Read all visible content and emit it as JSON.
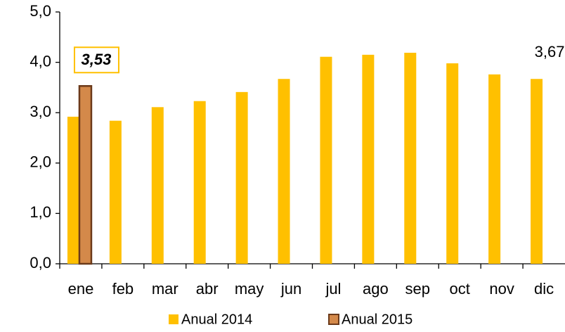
{
  "chart_data": {
    "type": "bar",
    "categories": [
      "ene",
      "feb",
      "mar",
      "abr",
      "may",
      "jun",
      "jul",
      "ago",
      "sep",
      "oct",
      "nov",
      "dic"
    ],
    "series": [
      {
        "name": "Anual 2014",
        "color": "#FFC000",
        "values": [
          2.92,
          2.84,
          3.11,
          3.23,
          3.41,
          3.67,
          4.11,
          4.15,
          4.19,
          3.98,
          3.76,
          3.67
        ],
        "value_labels": [
          null,
          null,
          null,
          null,
          null,
          null,
          null,
          null,
          null,
          null,
          null,
          "3,67"
        ]
      },
      {
        "name": "Anual 2015",
        "color": "#D4894A",
        "values": [
          3.53,
          null,
          null,
          null,
          null,
          null,
          null,
          null,
          null,
          null,
          null,
          null
        ],
        "value_labels": [
          "3,53",
          null,
          null,
          null,
          null,
          null,
          null,
          null,
          null,
          null,
          null,
          null
        ]
      }
    ],
    "ylim": [
      0,
      5
    ],
    "yticks": [
      {
        "value": 0,
        "label": "0,0"
      },
      {
        "value": 1,
        "label": "1,0"
      },
      {
        "value": 2,
        "label": "2,0"
      },
      {
        "value": 3,
        "label": "3,0"
      },
      {
        "value": 4,
        "label": "4,0"
      },
      {
        "value": 5,
        "label": "5,0"
      }
    ],
    "grid": false,
    "legend": "bottom"
  }
}
